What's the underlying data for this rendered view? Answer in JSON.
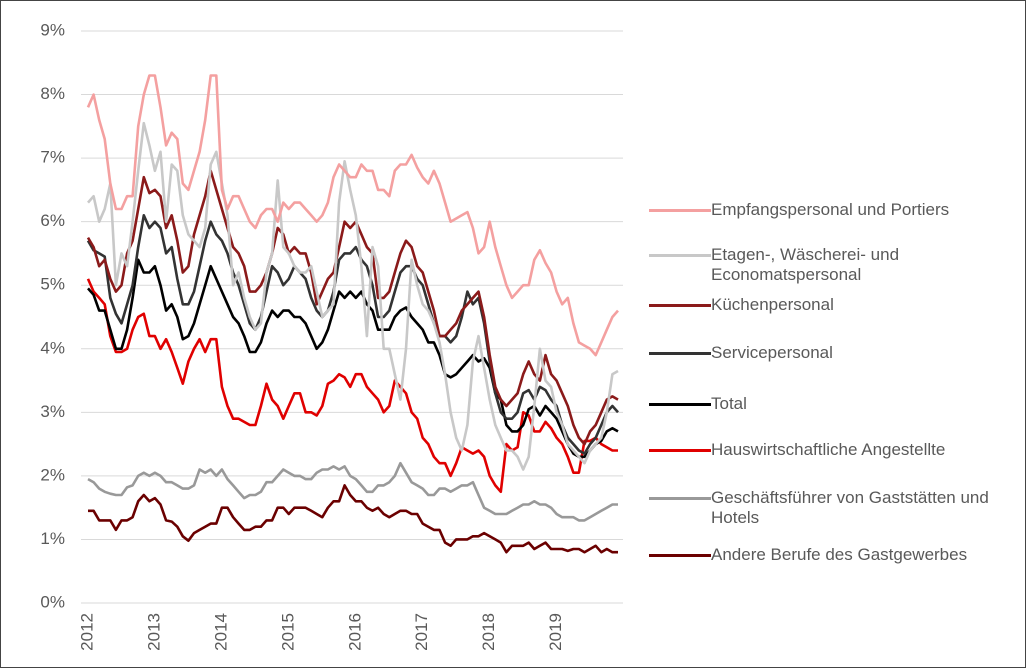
{
  "chart_data": {
    "type": "line",
    "categories": [
      "2012",
      null,
      null,
      null,
      null,
      null,
      null,
      null,
      null,
      null,
      null,
      null,
      "2013",
      null,
      null,
      null,
      null,
      null,
      null,
      null,
      null,
      null,
      null,
      null,
      "2014",
      null,
      null,
      null,
      null,
      null,
      null,
      null,
      null,
      null,
      null,
      null,
      "2015",
      null,
      null,
      null,
      null,
      null,
      null,
      null,
      null,
      null,
      null,
      null,
      "2016",
      null,
      null,
      null,
      null,
      null,
      null,
      null,
      null,
      null,
      null,
      null,
      "2017",
      null,
      null,
      null,
      null,
      null,
      null,
      null,
      null,
      null,
      null,
      null,
      "2018",
      null,
      null,
      null,
      null,
      null,
      null,
      null,
      null,
      null,
      null,
      null,
      "2019",
      null,
      null,
      null,
      null,
      null,
      null,
      null,
      null,
      null,
      null,
      null
    ],
    "ylim": [
      0,
      9
    ],
    "yticks": [
      {
        "value": 0,
        "label": "0%"
      },
      {
        "value": 1,
        "label": "1%"
      },
      {
        "value": 2,
        "label": "2%"
      },
      {
        "value": 3,
        "label": "3%"
      },
      {
        "value": 4,
        "label": "4%"
      },
      {
        "value": 5,
        "label": "5%"
      },
      {
        "value": 6,
        "label": "6%"
      },
      {
        "value": 7,
        "label": "7%"
      },
      {
        "value": 8,
        "label": "8%"
      },
      {
        "value": 9,
        "label": "9%"
      }
    ],
    "grid": true,
    "legend": "right",
    "series": [
      {
        "name": "Empfangspersonal und Portiers",
        "color": "#f4a0a0",
        "values": [
          7.8,
          8.0,
          7.6,
          7.3,
          6.6,
          6.2,
          6.2,
          6.4,
          6.4,
          7.5,
          8.0,
          8.3,
          8.3,
          7.8,
          7.2,
          7.4,
          7.3,
          6.6,
          6.5,
          6.8,
          7.1,
          7.6,
          8.3,
          8.3,
          6.5,
          6.2,
          6.4,
          6.4,
          6.2,
          6.0,
          5.9,
          6.1,
          6.2,
          6.2,
          6.0,
          6.3,
          6.2,
          6.3,
          6.3,
          6.2,
          6.1,
          6.0,
          6.1,
          6.3,
          6.7,
          6.9,
          6.8,
          6.7,
          6.7,
          6.9,
          6.8,
          6.8,
          6.5,
          6.5,
          6.4,
          6.8,
          6.9,
          6.9,
          7.05,
          6.85,
          6.7,
          6.6,
          6.8,
          6.6,
          6.3,
          6.0,
          6.05,
          6.1,
          6.15,
          5.9,
          5.5,
          5.6,
          6.0,
          5.6,
          5.3,
          5.0,
          4.8,
          4.9,
          5.0,
          5.0,
          5.4,
          5.55,
          5.35,
          5.2,
          4.9,
          4.7,
          4.8,
          4.4,
          4.1,
          4.05,
          4.0,
          3.9,
          4.1,
          4.3,
          4.5,
          4.6
        ]
      },
      {
        "name": "Etagen-, Wäscherei- und Economatspersonal",
        "color": "#c8c8c8",
        "values": [
          6.3,
          6.4,
          6.0,
          6.2,
          6.6,
          5.0,
          5.5,
          5.3,
          6.0,
          6.8,
          7.55,
          7.2,
          6.8,
          7.1,
          6.0,
          6.9,
          6.8,
          6.1,
          5.8,
          5.7,
          5.6,
          5.9,
          6.9,
          7.1,
          6.6,
          6.1,
          5.0,
          5.2,
          4.8,
          4.5,
          4.3,
          4.4,
          5.2,
          5.5,
          6.65,
          5.6,
          5.5,
          5.3,
          5.2,
          5.2,
          5.3,
          4.9,
          4.5,
          4.6,
          4.7,
          6.3,
          6.95,
          6.5,
          6.1,
          5.3,
          4.2,
          5.6,
          5.3,
          4.0,
          4.0,
          3.6,
          3.2,
          4.0,
          5.4,
          5.0,
          4.7,
          4.6,
          4.4,
          4.1,
          3.6,
          3.0,
          2.6,
          2.4,
          2.8,
          3.8,
          4.2,
          3.7,
          3.2,
          2.8,
          2.6,
          2.4,
          2.4,
          2.3,
          2.1,
          2.3,
          3.1,
          4.0,
          3.5,
          3.4,
          3.0,
          2.8,
          2.5,
          2.4,
          2.3,
          2.2,
          2.4,
          2.5,
          2.6,
          3.0,
          3.6,
          3.65
        ]
      },
      {
        "name": "Küchenpersonal",
        "color": "#8b1a1a",
        "values": [
          5.75,
          5.6,
          5.3,
          5.4,
          5.1,
          4.9,
          5.0,
          5.5,
          5.7,
          6.2,
          6.7,
          6.45,
          6.5,
          6.4,
          5.9,
          6.1,
          5.7,
          5.2,
          5.3,
          5.8,
          6.1,
          6.4,
          6.8,
          6.5,
          6.2,
          5.9,
          5.6,
          5.5,
          5.3,
          4.9,
          4.9,
          5.0,
          5.2,
          5.5,
          5.9,
          5.8,
          5.5,
          5.6,
          5.5,
          5.5,
          5.2,
          4.7,
          4.9,
          5.1,
          5.2,
          5.6,
          6.0,
          5.9,
          6.0,
          5.8,
          5.6,
          5.5,
          4.8,
          4.8,
          4.9,
          5.2,
          5.5,
          5.7,
          5.6,
          5.3,
          5.2,
          4.9,
          4.6,
          4.2,
          4.2,
          4.3,
          4.4,
          4.6,
          4.7,
          4.8,
          4.9,
          4.5,
          3.9,
          3.4,
          3.2,
          3.1,
          3.2,
          3.3,
          3.6,
          3.8,
          3.6,
          3.5,
          3.9,
          3.6,
          3.5,
          3.3,
          3.1,
          2.8,
          2.6,
          2.5,
          2.7,
          2.8,
          3.0,
          3.2,
          3.25,
          3.2
        ]
      },
      {
        "name": "Servicepersonal",
        "color": "#333333",
        "values": [
          5.7,
          5.55,
          5.5,
          5.45,
          4.8,
          4.55,
          4.4,
          4.7,
          5.0,
          5.6,
          6.1,
          5.9,
          6.0,
          5.9,
          5.5,
          5.6,
          5.1,
          4.7,
          4.7,
          4.9,
          5.3,
          5.7,
          6.0,
          5.8,
          5.7,
          5.5,
          5.2,
          5.0,
          4.7,
          4.4,
          4.3,
          4.5,
          4.9,
          5.3,
          5.2,
          5.0,
          5.1,
          5.3,
          5.2,
          5.1,
          4.8,
          4.6,
          4.5,
          4.6,
          4.9,
          5.4,
          5.5,
          5.5,
          5.6,
          5.4,
          5.3,
          5.0,
          4.5,
          4.5,
          4.6,
          4.9,
          5.2,
          5.3,
          5.3,
          5.1,
          5.0,
          4.7,
          4.4,
          4.2,
          4.2,
          4.1,
          4.2,
          4.5,
          4.9,
          4.7,
          4.8,
          4.4,
          3.8,
          3.3,
          3.0,
          2.9,
          2.9,
          3.0,
          3.3,
          3.35,
          3.2,
          3.4,
          3.35,
          3.2,
          3.1,
          2.8,
          2.6,
          2.5,
          2.4,
          2.35,
          2.5,
          2.6,
          2.8,
          3.0,
          3.1,
          3.0
        ]
      },
      {
        "name": "Total",
        "color": "#000000",
        "values": [
          4.95,
          4.85,
          4.6,
          4.6,
          4.3,
          4.0,
          4.0,
          4.3,
          4.8,
          5.4,
          5.2,
          5.2,
          5.3,
          5.0,
          4.6,
          4.7,
          4.5,
          4.15,
          4.2,
          4.4,
          4.7,
          5.0,
          5.3,
          5.1,
          4.9,
          4.7,
          4.5,
          4.4,
          4.2,
          3.95,
          3.95,
          4.1,
          4.4,
          4.6,
          4.5,
          4.6,
          4.6,
          4.5,
          4.5,
          4.4,
          4.2,
          4.0,
          4.1,
          4.3,
          4.6,
          4.9,
          4.8,
          4.9,
          4.8,
          4.9,
          4.7,
          4.6,
          4.3,
          4.3,
          4.3,
          4.5,
          4.6,
          4.65,
          4.5,
          4.4,
          4.3,
          4.1,
          4.1,
          3.9,
          3.6,
          3.55,
          3.6,
          3.7,
          3.8,
          3.9,
          3.8,
          3.85,
          3.7,
          3.3,
          3.2,
          2.8,
          2.7,
          2.7,
          2.8,
          3.05,
          3.1,
          2.95,
          3.1,
          3.0,
          2.9,
          2.7,
          2.5,
          2.35,
          2.3,
          2.3,
          2.4,
          2.5,
          2.55,
          2.7,
          2.75,
          2.7
        ]
      },
      {
        "name": "Hauswirtschaftliche Angestellte",
        "color": "#e00000",
        "values": [
          5.1,
          4.9,
          4.8,
          4.7,
          4.2,
          3.95,
          3.95,
          4.0,
          4.3,
          4.5,
          4.55,
          4.2,
          4.2,
          4.0,
          4.15,
          3.95,
          3.7,
          3.45,
          3.8,
          4.0,
          4.15,
          3.95,
          4.15,
          4.15,
          3.4,
          3.1,
          2.9,
          2.9,
          2.85,
          2.8,
          2.8,
          3.1,
          3.45,
          3.2,
          3.1,
          2.9,
          3.1,
          3.3,
          3.3,
          3.0,
          3.0,
          2.95,
          3.1,
          3.45,
          3.5,
          3.6,
          3.55,
          3.4,
          3.6,
          3.6,
          3.4,
          3.3,
          3.2,
          3.0,
          3.1,
          3.5,
          3.4,
          3.3,
          3.0,
          2.9,
          2.6,
          2.5,
          2.3,
          2.2,
          2.2,
          2.0,
          2.2,
          2.45,
          2.4,
          2.35,
          2.4,
          2.3,
          2.0,
          1.85,
          1.75,
          2.5,
          2.4,
          2.45,
          3.0,
          2.95,
          2.7,
          2.7,
          2.85,
          2.75,
          2.6,
          2.5,
          2.3,
          2.05,
          2.05,
          2.55,
          2.55,
          2.6,
          2.5,
          2.45,
          2.4,
          2.4
        ]
      },
      {
        "name": "Geschäftsführer von Gaststätten und Hotels",
        "color": "#999999",
        "values": [
          1.95,
          1.9,
          1.8,
          1.75,
          1.72,
          1.7,
          1.7,
          1.82,
          1.85,
          2.0,
          2.05,
          2.0,
          2.05,
          2.0,
          1.9,
          1.9,
          1.85,
          1.8,
          1.8,
          1.85,
          2.1,
          2.05,
          2.1,
          2.0,
          2.1,
          1.95,
          1.85,
          1.75,
          1.65,
          1.7,
          1.7,
          1.75,
          1.9,
          1.9,
          2.0,
          2.1,
          2.05,
          2.0,
          2.0,
          1.95,
          1.95,
          2.05,
          2.1,
          2.1,
          2.15,
          2.1,
          2.15,
          2.0,
          1.95,
          1.85,
          1.75,
          1.75,
          1.85,
          1.85,
          1.9,
          2.0,
          2.2,
          2.05,
          1.9,
          1.85,
          1.8,
          1.7,
          1.7,
          1.8,
          1.8,
          1.75,
          1.8,
          1.85,
          1.85,
          1.9,
          1.7,
          1.5,
          1.45,
          1.4,
          1.4,
          1.4,
          1.45,
          1.5,
          1.55,
          1.55,
          1.6,
          1.55,
          1.55,
          1.5,
          1.4,
          1.35,
          1.35,
          1.35,
          1.3,
          1.3,
          1.35,
          1.4,
          1.45,
          1.5,
          1.55,
          1.55
        ]
      },
      {
        "name": "Andere Berufe des Gastgewerbes",
        "color": "#6b0000",
        "values": [
          1.45,
          1.45,
          1.3,
          1.3,
          1.3,
          1.15,
          1.3,
          1.3,
          1.35,
          1.6,
          1.7,
          1.6,
          1.65,
          1.55,
          1.3,
          1.28,
          1.2,
          1.05,
          0.98,
          1.1,
          1.15,
          1.2,
          1.25,
          1.25,
          1.5,
          1.5,
          1.35,
          1.25,
          1.15,
          1.15,
          1.2,
          1.2,
          1.3,
          1.3,
          1.5,
          1.5,
          1.4,
          1.5,
          1.5,
          1.5,
          1.45,
          1.4,
          1.35,
          1.5,
          1.6,
          1.6,
          1.85,
          1.7,
          1.6,
          1.6,
          1.5,
          1.45,
          1.5,
          1.4,
          1.35,
          1.4,
          1.45,
          1.45,
          1.4,
          1.4,
          1.25,
          1.2,
          1.15,
          1.15,
          0.95,
          0.9,
          1.0,
          1.0,
          1.0,
          1.05,
          1.05,
          1.1,
          1.05,
          1.0,
          0.95,
          0.8,
          0.9,
          0.9,
          0.9,
          0.95,
          0.85,
          0.9,
          0.95,
          0.85,
          0.85,
          0.85,
          0.82,
          0.85,
          0.85,
          0.8,
          0.85,
          0.9,
          0.8,
          0.85,
          0.8,
          0.8
        ]
      }
    ]
  }
}
